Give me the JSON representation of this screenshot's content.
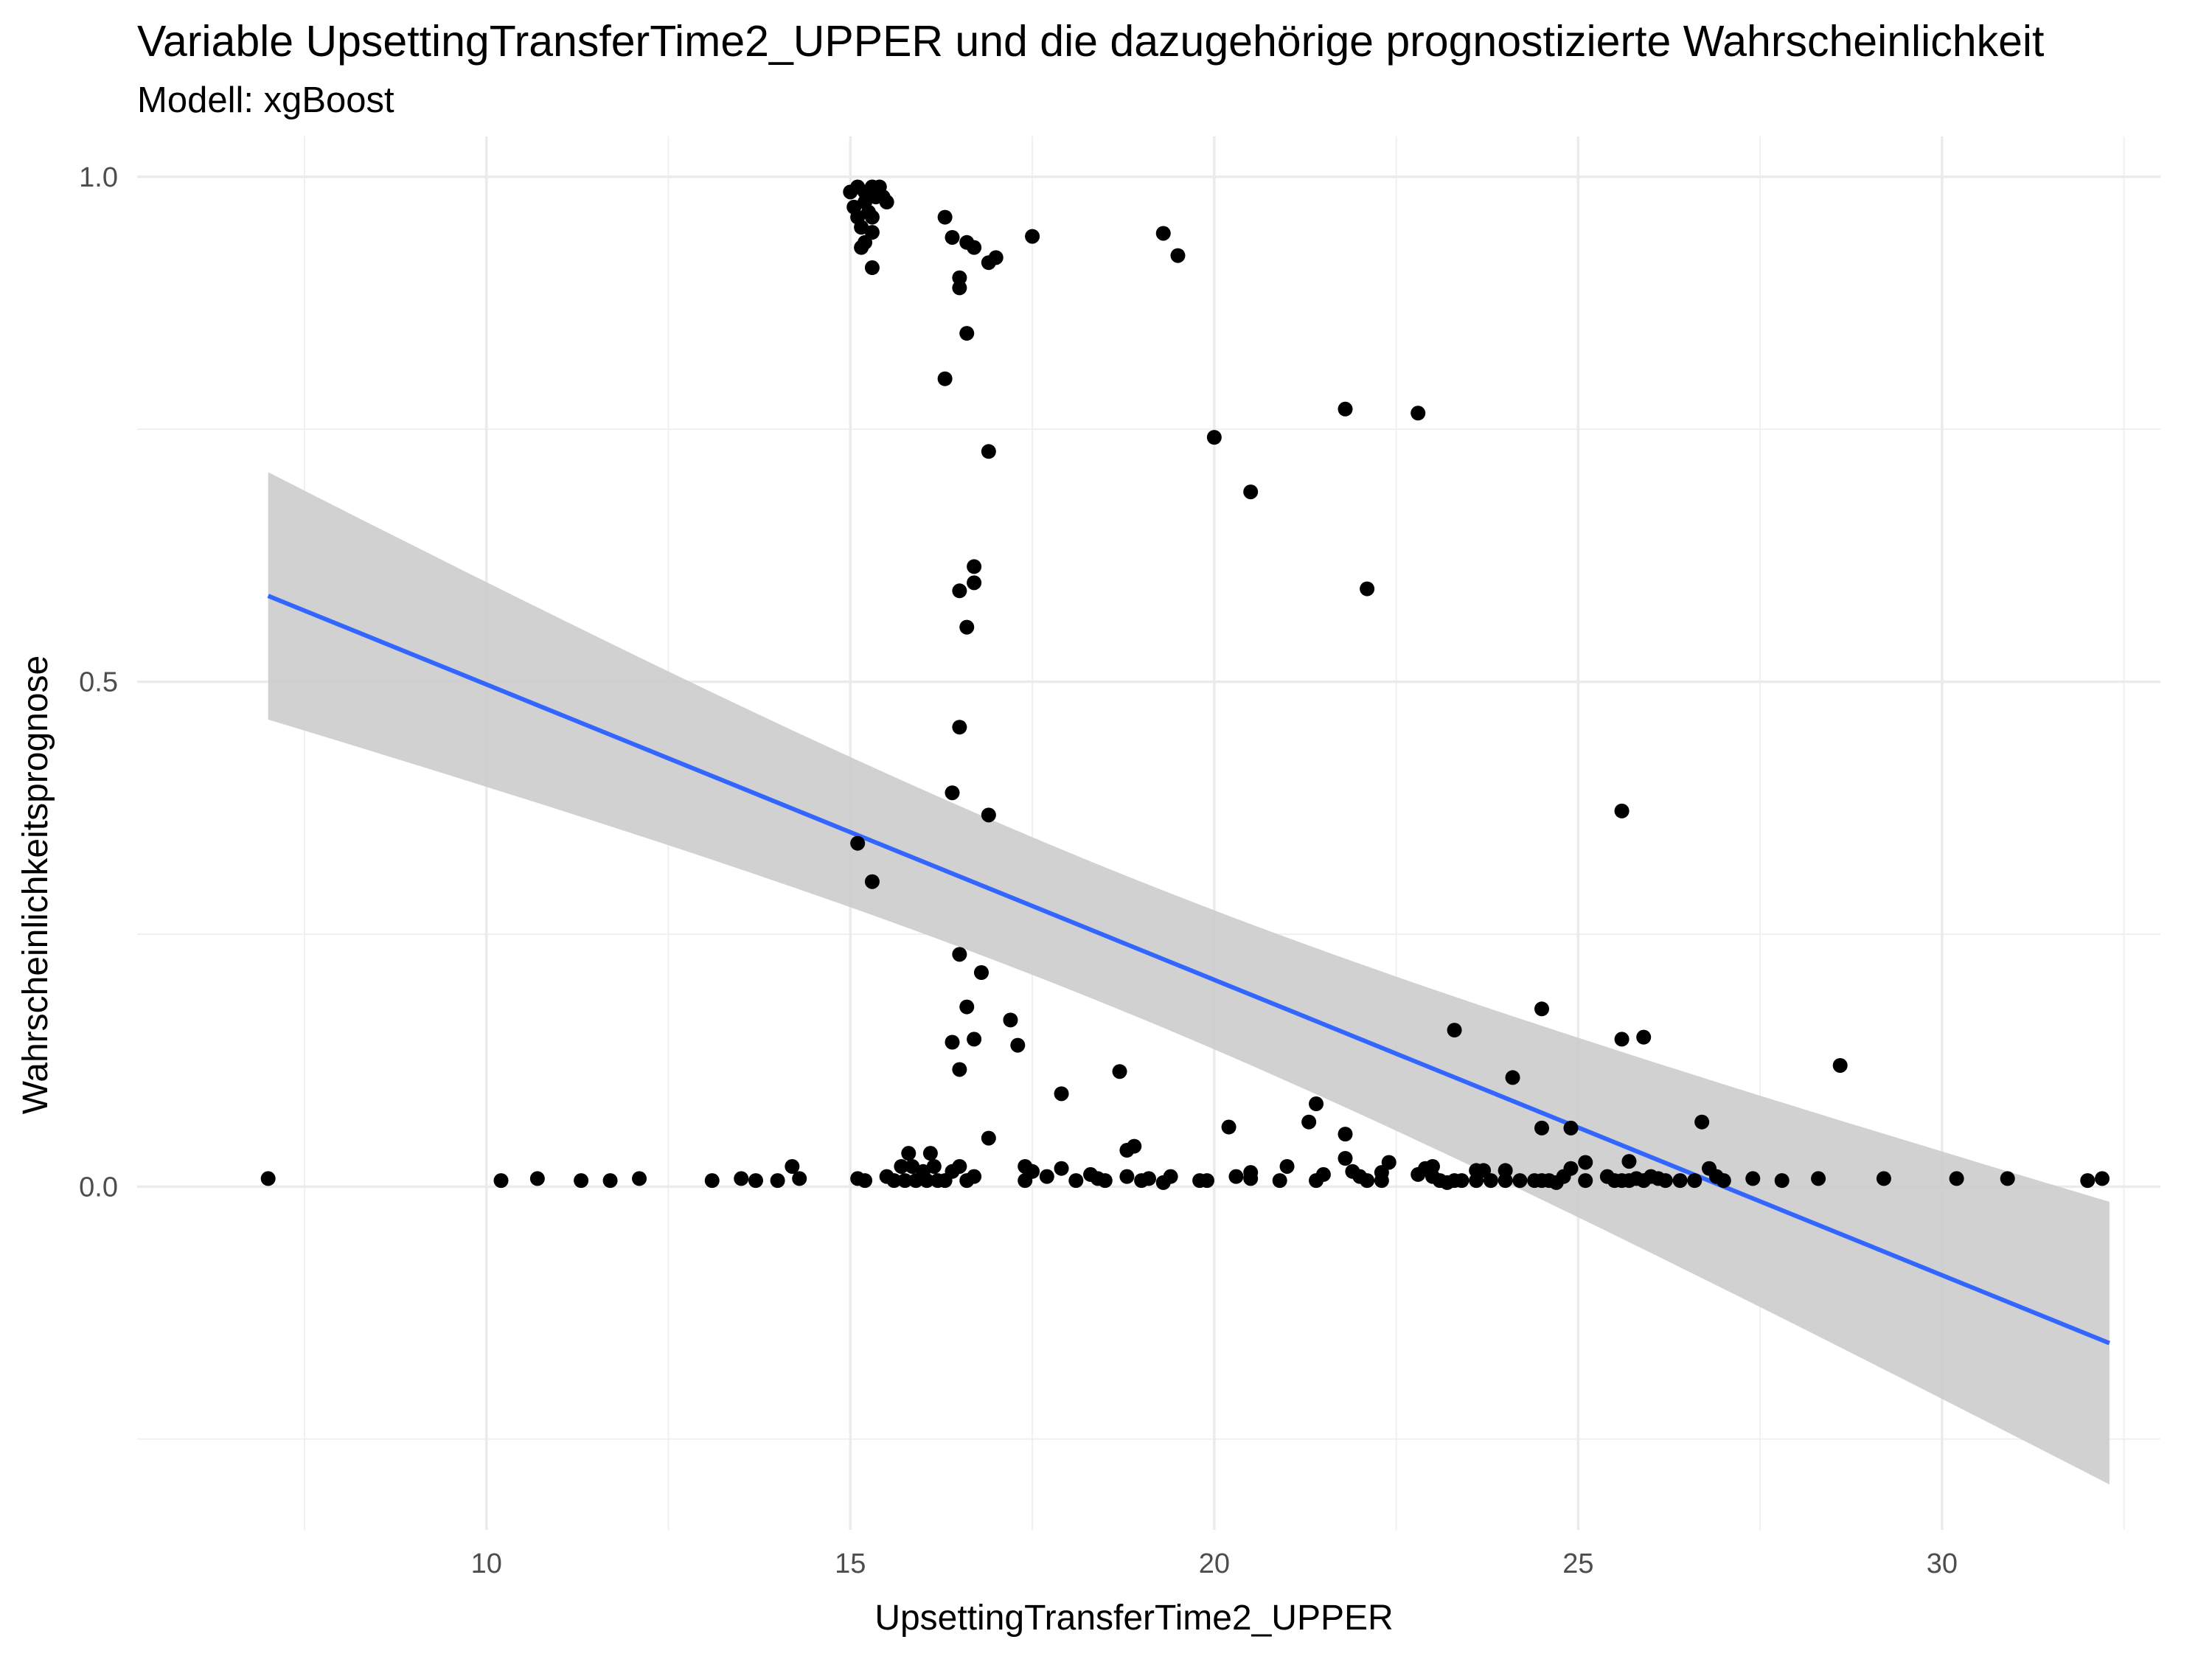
{
  "title": "Variable UpsettingTransferTime2_UPPER und die dazugehörige prognostizierte Wahrscheinlichkeit",
  "subtitle": "Modell: xgBoost",
  "chart_data": {
    "type": "scatter",
    "xlabel": "UpsettingTransferTime2_UPPER",
    "ylabel": "Wahrscheinlichkeitsprognose",
    "xlim": [
      5.2,
      33.0
    ],
    "ylim": [
      -0.34,
      1.04
    ],
    "x_ticks": [
      10,
      15,
      20,
      25,
      30
    ],
    "x_tick_labels": [
      "10",
      "15",
      "20",
      "25",
      "30"
    ],
    "y_ticks": [
      0.0,
      0.5,
      1.0
    ],
    "y_tick_labels": [
      "0.0",
      "0.5",
      "1.0"
    ],
    "grid": true,
    "colors": {
      "points": "#000000",
      "fit_line": "#3366FF",
      "ribbon": "#cccccc",
      "grid": "#ebebeb"
    },
    "trend": {
      "method": "linear regression with confidence band",
      "x": [
        7.0,
        32.3
      ],
      "y": [
        0.585,
        -0.155
      ],
      "ci_lower": [
        0.465,
        -0.295
      ],
      "ci_upper": [
        0.71,
        -0.015
      ]
    },
    "points": [
      {
        "x": 7.0,
        "y": 0.008
      },
      {
        "x": 10.2,
        "y": 0.006
      },
      {
        "x": 10.7,
        "y": 0.008
      },
      {
        "x": 11.3,
        "y": 0.006
      },
      {
        "x": 11.7,
        "y": 0.006
      },
      {
        "x": 12.1,
        "y": 0.008
      },
      {
        "x": 13.1,
        "y": 0.006
      },
      {
        "x": 13.5,
        "y": 0.008
      },
      {
        "x": 13.7,
        "y": 0.006
      },
      {
        "x": 14.0,
        "y": 0.006
      },
      {
        "x": 14.2,
        "y": 0.02
      },
      {
        "x": 14.3,
        "y": 0.008
      },
      {
        "x": 15.0,
        "y": 0.985
      },
      {
        "x": 15.05,
        "y": 0.97
      },
      {
        "x": 15.1,
        "y": 0.99
      },
      {
        "x": 15.1,
        "y": 0.96
      },
      {
        "x": 15.15,
        "y": 0.95
      },
      {
        "x": 15.2,
        "y": 0.985
      },
      {
        "x": 15.2,
        "y": 0.975
      },
      {
        "x": 15.25,
        "y": 0.965
      },
      {
        "x": 15.3,
        "y": 0.99
      },
      {
        "x": 15.35,
        "y": 0.98
      },
      {
        "x": 15.4,
        "y": 0.99
      },
      {
        "x": 15.45,
        "y": 0.98
      },
      {
        "x": 15.5,
        "y": 0.975
      },
      {
        "x": 15.3,
        "y": 0.96
      },
      {
        "x": 15.3,
        "y": 0.945
      },
      {
        "x": 15.15,
        "y": 0.93
      },
      {
        "x": 15.2,
        "y": 0.935
      },
      {
        "x": 15.3,
        "y": 0.91
      },
      {
        "x": 15.1,
        "y": 0.34
      },
      {
        "x": 15.3,
        "y": 0.302
      },
      {
        "x": 15.1,
        "y": 0.008
      },
      {
        "x": 15.2,
        "y": 0.006
      },
      {
        "x": 15.5,
        "y": 0.01
      },
      {
        "x": 15.6,
        "y": 0.006
      },
      {
        "x": 15.7,
        "y": 0.02
      },
      {
        "x": 15.75,
        "y": 0.006
      },
      {
        "x": 15.8,
        "y": 0.033
      },
      {
        "x": 15.85,
        "y": 0.02
      },
      {
        "x": 15.9,
        "y": 0.006
      },
      {
        "x": 16.0,
        "y": 0.015
      },
      {
        "x": 16.05,
        "y": 0.006
      },
      {
        "x": 16.1,
        "y": 0.033
      },
      {
        "x": 16.15,
        "y": 0.02
      },
      {
        "x": 16.2,
        "y": 0.006
      },
      {
        "x": 16.3,
        "y": 0.006
      },
      {
        "x": 16.4,
        "y": 0.015
      },
      {
        "x": 16.5,
        "y": 0.02
      },
      {
        "x": 16.6,
        "y": 0.006
      },
      {
        "x": 16.7,
        "y": 0.01
      },
      {
        "x": 16.3,
        "y": 0.96
      },
      {
        "x": 16.4,
        "y": 0.94
      },
      {
        "x": 16.6,
        "y": 0.935
      },
      {
        "x": 16.7,
        "y": 0.93
      },
      {
        "x": 16.5,
        "y": 0.9
      },
      {
        "x": 16.5,
        "y": 0.89
      },
      {
        "x": 16.9,
        "y": 0.915
      },
      {
        "x": 17.0,
        "y": 0.92
      },
      {
        "x": 16.6,
        "y": 0.845
      },
      {
        "x": 16.3,
        "y": 0.8
      },
      {
        "x": 16.9,
        "y": 0.728
      },
      {
        "x": 16.7,
        "y": 0.614
      },
      {
        "x": 16.7,
        "y": 0.598
      },
      {
        "x": 16.5,
        "y": 0.59
      },
      {
        "x": 16.6,
        "y": 0.554
      },
      {
        "x": 16.5,
        "y": 0.455
      },
      {
        "x": 16.4,
        "y": 0.39
      },
      {
        "x": 16.9,
        "y": 0.368
      },
      {
        "x": 16.5,
        "y": 0.23
      },
      {
        "x": 16.8,
        "y": 0.212
      },
      {
        "x": 16.6,
        "y": 0.178
      },
      {
        "x": 16.4,
        "y": 0.143
      },
      {
        "x": 16.7,
        "y": 0.146
      },
      {
        "x": 16.5,
        "y": 0.116
      },
      {
        "x": 17.2,
        "y": 0.165
      },
      {
        "x": 17.3,
        "y": 0.14
      },
      {
        "x": 16.9,
        "y": 0.048
      },
      {
        "x": 17.4,
        "y": 0.02
      },
      {
        "x": 17.5,
        "y": 0.015
      },
      {
        "x": 17.4,
        "y": 0.006
      },
      {
        "x": 17.7,
        "y": 0.01
      },
      {
        "x": 17.9,
        "y": 0.092
      },
      {
        "x": 17.9,
        "y": 0.018
      },
      {
        "x": 18.1,
        "y": 0.006
      },
      {
        "x": 18.3,
        "y": 0.012
      },
      {
        "x": 18.4,
        "y": 0.008
      },
      {
        "x": 18.5,
        "y": 0.006
      },
      {
        "x": 18.7,
        "y": 0.114
      },
      {
        "x": 18.8,
        "y": 0.036
      },
      {
        "x": 18.9,
        "y": 0.04
      },
      {
        "x": 18.8,
        "y": 0.01
      },
      {
        "x": 19.0,
        "y": 0.006
      },
      {
        "x": 19.1,
        "y": 0.008
      },
      {
        "x": 19.3,
        "y": 0.004
      },
      {
        "x": 19.4,
        "y": 0.01
      },
      {
        "x": 19.3,
        "y": 0.944
      },
      {
        "x": 19.5,
        "y": 0.922
      },
      {
        "x": 17.5,
        "y": 0.941
      },
      {
        "x": 20.0,
        "y": 0.742
      },
      {
        "x": 20.5,
        "y": 0.688
      },
      {
        "x": 21.8,
        "y": 0.77
      },
      {
        "x": 22.8,
        "y": 0.766
      },
      {
        "x": 22.1,
        "y": 0.592
      },
      {
        "x": 19.8,
        "y": 0.006
      },
      {
        "x": 19.9,
        "y": 0.006
      },
      {
        "x": 20.2,
        "y": 0.059
      },
      {
        "x": 20.3,
        "y": 0.01
      },
      {
        "x": 20.5,
        "y": 0.014
      },
      {
        "x": 20.5,
        "y": 0.008
      },
      {
        "x": 20.9,
        "y": 0.006
      },
      {
        "x": 21.0,
        "y": 0.02
      },
      {
        "x": 21.3,
        "y": 0.064
      },
      {
        "x": 21.4,
        "y": 0.082
      },
      {
        "x": 21.4,
        "y": 0.006
      },
      {
        "x": 21.5,
        "y": 0.012
      },
      {
        "x": 21.8,
        "y": 0.052
      },
      {
        "x": 21.8,
        "y": 0.028
      },
      {
        "x": 21.9,
        "y": 0.015
      },
      {
        "x": 22.0,
        "y": 0.01
      },
      {
        "x": 22.1,
        "y": 0.006
      },
      {
        "x": 22.3,
        "y": 0.006
      },
      {
        "x": 22.3,
        "y": 0.014
      },
      {
        "x": 22.4,
        "y": 0.024
      },
      {
        "x": 22.8,
        "y": 0.012
      },
      {
        "x": 22.9,
        "y": 0.018
      },
      {
        "x": 23.0,
        "y": 0.01
      },
      {
        "x": 23.0,
        "y": 0.02
      },
      {
        "x": 23.1,
        "y": 0.006
      },
      {
        "x": 23.2,
        "y": 0.004
      },
      {
        "x": 23.3,
        "y": 0.006
      },
      {
        "x": 23.3,
        "y": 0.155
      },
      {
        "x": 23.4,
        "y": 0.006
      },
      {
        "x": 23.6,
        "y": 0.016
      },
      {
        "x": 23.6,
        "y": 0.006
      },
      {
        "x": 23.7,
        "y": 0.016
      },
      {
        "x": 23.8,
        "y": 0.006
      },
      {
        "x": 24.0,
        "y": 0.016
      },
      {
        "x": 24.0,
        "y": 0.006
      },
      {
        "x": 24.1,
        "y": 0.108
      },
      {
        "x": 24.2,
        "y": 0.006
      },
      {
        "x": 24.4,
        "y": 0.006
      },
      {
        "x": 24.5,
        "y": 0.006
      },
      {
        "x": 24.5,
        "y": 0.176
      },
      {
        "x": 24.5,
        "y": 0.058
      },
      {
        "x": 24.6,
        "y": 0.006
      },
      {
        "x": 24.7,
        "y": 0.004
      },
      {
        "x": 24.8,
        "y": 0.01
      },
      {
        "x": 24.9,
        "y": 0.058
      },
      {
        "x": 24.9,
        "y": 0.018
      },
      {
        "x": 25.1,
        "y": 0.024
      },
      {
        "x": 25.1,
        "y": 0.006
      },
      {
        "x": 25.4,
        "y": 0.01
      },
      {
        "x": 25.5,
        "y": 0.006
      },
      {
        "x": 25.6,
        "y": 0.006
      },
      {
        "x": 25.6,
        "y": 0.372
      },
      {
        "x": 25.6,
        "y": 0.146
      },
      {
        "x": 25.7,
        "y": 0.025
      },
      {
        "x": 25.7,
        "y": 0.006
      },
      {
        "x": 25.8,
        "y": 0.008
      },
      {
        "x": 25.9,
        "y": 0.148
      },
      {
        "x": 25.9,
        "y": 0.006
      },
      {
        "x": 26.0,
        "y": 0.01
      },
      {
        "x": 26.1,
        "y": 0.008
      },
      {
        "x": 26.2,
        "y": 0.006
      },
      {
        "x": 26.4,
        "y": 0.006
      },
      {
        "x": 26.6,
        "y": 0.006
      },
      {
        "x": 26.7,
        "y": 0.064
      },
      {
        "x": 26.8,
        "y": 0.018
      },
      {
        "x": 26.9,
        "y": 0.01
      },
      {
        "x": 27.0,
        "y": 0.006
      },
      {
        "x": 27.4,
        "y": 0.008
      },
      {
        "x": 27.8,
        "y": 0.006
      },
      {
        "x": 28.3,
        "y": 0.008
      },
      {
        "x": 28.6,
        "y": 0.12
      },
      {
        "x": 29.2,
        "y": 0.008
      },
      {
        "x": 30.2,
        "y": 0.008
      },
      {
        "x": 30.9,
        "y": 0.008
      },
      {
        "x": 32.0,
        "y": 0.006
      },
      {
        "x": 32.2,
        "y": 0.008
      }
    ]
  }
}
